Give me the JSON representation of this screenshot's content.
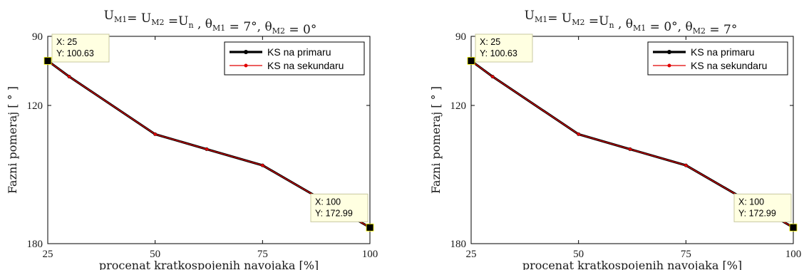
{
  "colors": {
    "primary_series": "#000000",
    "secondary_series": "#e00000",
    "datatip_bg": "#ffffe1",
    "axis": "#000000"
  },
  "chart_data": [
    {
      "type": "line",
      "title": "Uₘ₁= Uₘ₂ =Uₙ , θₘ₁ = 7°, θₘ₂ = 0°",
      "title_parts": [
        {
          "t": "U"
        },
        {
          "t": "M1",
          "sub": true
        },
        {
          "t": "= U"
        },
        {
          "t": "M2",
          "sub": true
        },
        {
          "t": " =U"
        },
        {
          "t": "n",
          "sub": true
        },
        {
          "t": " , θ"
        },
        {
          "t": "M1",
          "sub": true
        },
        {
          "t": " = 7°, θ"
        },
        {
          "t": "M2",
          "sub": true
        },
        {
          "t": " = 0°"
        }
      ],
      "xlabel": "procenat kratkospojenih navojaka [%]",
      "ylabel": "Fazni pomeraj [ ° ]",
      "xlim": [
        25,
        100
      ],
      "ylim": [
        90,
        180
      ],
      "y_reversed": true,
      "xticks": [
        25,
        50,
        75,
        100
      ],
      "yticks": [
        90,
        120,
        180
      ],
      "legend_position": "top-right",
      "series": [
        {
          "name": "KS na primaru",
          "x": [
            25,
            30,
            50,
            62,
            75,
            100
          ],
          "y": [
            100.63,
            107.5,
            132.5,
            139,
            146,
            172.99
          ]
        },
        {
          "name": "KS na sekundaru",
          "x": [
            25,
            30,
            50,
            62,
            75,
            100
          ],
          "y": [
            100.63,
            107.5,
            132.5,
            139,
            146,
            172.99
          ]
        }
      ],
      "datatips": [
        {
          "x_label": "X: 25",
          "y_label": "Y: 100.63",
          "x": 25,
          "y": 100.63,
          "anchor": "below-right"
        },
        {
          "x_label": "X: 100",
          "y_label": "Y: 172.99",
          "x": 100,
          "y": 172.99,
          "anchor": "above-left"
        }
      ]
    },
    {
      "type": "line",
      "title": "Uₘ₁= Uₘ₂ =Uₙ , θₘ₁ = 0°, θₘ₂ = 7°",
      "title_parts": [
        {
          "t": "U"
        },
        {
          "t": "M1",
          "sub": true
        },
        {
          "t": "= U"
        },
        {
          "t": "M2",
          "sub": true
        },
        {
          "t": " =U"
        },
        {
          "t": "n",
          "sub": true
        },
        {
          "t": " , θ"
        },
        {
          "t": "M1",
          "sub": true
        },
        {
          "t": " = 0°, θ"
        },
        {
          "t": "M2",
          "sub": true
        },
        {
          "t": " = 7°"
        }
      ],
      "xlabel": "procenat kratkospojenih navojaka [%]",
      "ylabel": "Fazni pomeraj [ ° ]",
      "xlim": [
        25,
        100
      ],
      "ylim": [
        90,
        180
      ],
      "y_reversed": true,
      "xticks": [
        25,
        50,
        75,
        100
      ],
      "yticks": [
        90,
        120,
        180
      ],
      "legend_position": "top-right",
      "series": [
        {
          "name": "KS na primaru",
          "x": [
            25,
            30,
            50,
            62,
            75,
            100
          ],
          "y": [
            100.63,
            107.5,
            132.5,
            139,
            146,
            172.99
          ]
        },
        {
          "name": "KS na sekundaru",
          "x": [
            25,
            30,
            50,
            62,
            75,
            100
          ],
          "y": [
            100.63,
            107.5,
            132.5,
            139,
            146,
            172.99
          ]
        }
      ],
      "datatips": [
        {
          "x_label": "X: 25",
          "y_label": "Y: 100.63",
          "x": 25,
          "y": 100.63,
          "anchor": "below-right"
        },
        {
          "x_label": "X: 100",
          "y_label": "Y: 172.99",
          "x": 100,
          "y": 172.99,
          "anchor": "above-left"
        }
      ]
    }
  ]
}
